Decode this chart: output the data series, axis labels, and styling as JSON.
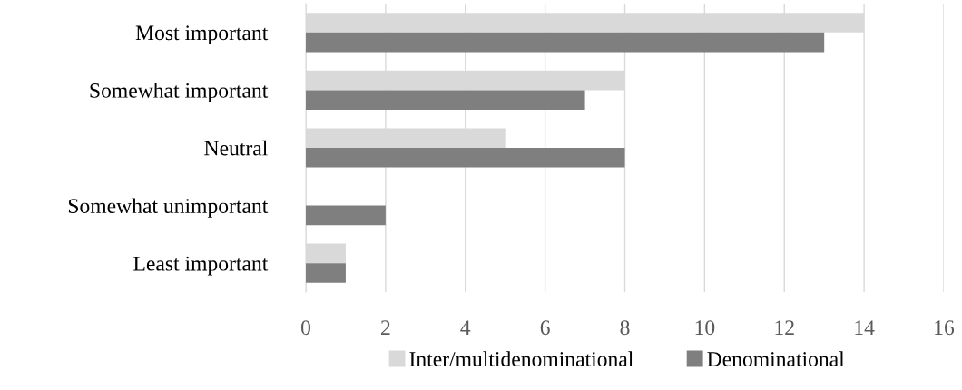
{
  "chart_data": {
    "type": "bar",
    "orientation": "horizontal",
    "categories": [
      "Most important",
      "Somewhat important",
      "Neutral",
      "Somewhat unimportant",
      "Least important"
    ],
    "series": [
      {
        "name": "Inter/multidenominational",
        "color": "#d9d9d9",
        "values": [
          14,
          8,
          5,
          0,
          1
        ]
      },
      {
        "name": "Denominational",
        "color": "#7f7f7f",
        "values": [
          13,
          7,
          8,
          2,
          1
        ]
      }
    ],
    "xlim": [
      0,
      16
    ],
    "xticks": [
      0,
      2,
      4,
      6,
      8,
      10,
      12,
      14,
      16
    ],
    "grid": "x",
    "legend": "bottom"
  }
}
